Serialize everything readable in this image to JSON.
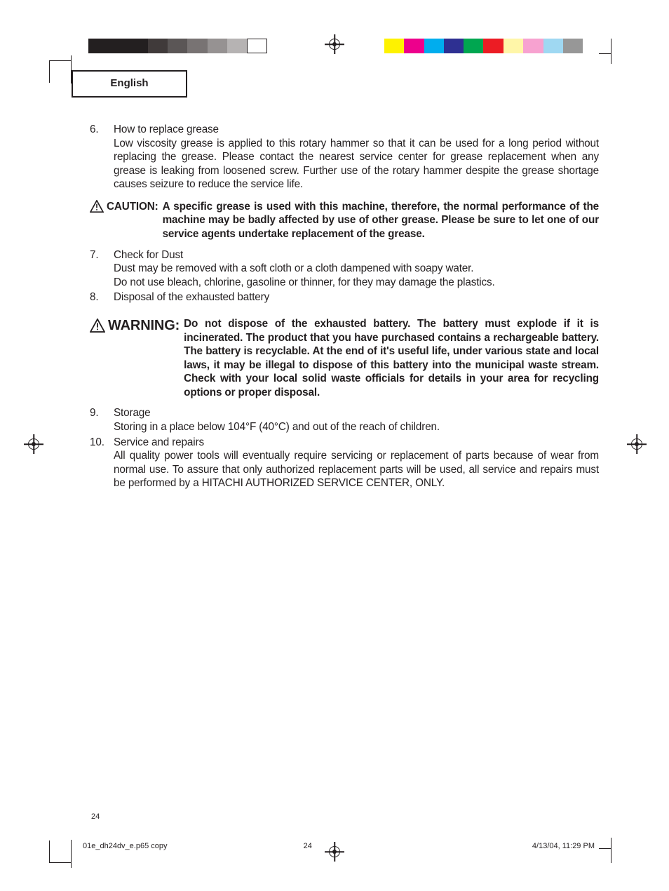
{
  "header": {
    "language": "English"
  },
  "printmarks": {
    "gray_swatches": [
      "#231f20",
      "#231f20",
      "#231f20",
      "#403a3a",
      "#5b5656",
      "#787373",
      "#969292",
      "#b6b3b3",
      "#ffffff"
    ],
    "color_swatches_1": [
      "#fef200",
      "#ed008c",
      "#00adee",
      "#2e3092",
      "#00a650",
      "#ec1c24"
    ],
    "color_swatches_2": [
      "#fff6a8",
      "#f7a2d0",
      "#9fd8f2",
      "#979797"
    ],
    "gray_border": "#231f20"
  },
  "items": {
    "i6": {
      "num": "6.",
      "title": "How to replace grease",
      "body": "Low viscosity grease is applied to this rotary hammer so that it can be used for a long period without replacing the grease. Please contact the nearest service center for grease replacement when any grease is leaking from loosened screw. Further use of the rotary hammer despite the grease shortage causes seizure to reduce the service life."
    },
    "caution": {
      "label": "CAUTION:",
      "body": "A specific grease is used with this machine, therefore, the normal performance of the machine may be badly affected by use of other grease. Please be sure to let one of our service agents undertake replacement of the grease."
    },
    "i7": {
      "num": "7.",
      "title": "Check for Dust",
      "body1": "Dust may be removed with a soft cloth or a cloth dampened with soapy water.",
      "body2": "Do not use bleach, chlorine, gasoline or thinner, for they may damage the plastics."
    },
    "i8": {
      "num": "8.",
      "title": "Disposal of the exhausted battery"
    },
    "warning": {
      "label": "WARNING:",
      "body": "Do not dispose of the exhausted battery. The battery must explode if it is incinerated. The product that you have purchased contains a rechargeable battery. The battery is recyclable. At the end of it's useful life, under various state and local laws, it may be illegal to dispose of this battery into the municipal waste stream. Check with your local solid waste officials for details in your area for recycling options or proper disposal."
    },
    "i9": {
      "num": "9.",
      "title": "Storage",
      "body": "Storing in a place below 104°F (40°C) and out of the reach of children."
    },
    "i10": {
      "num": "10.",
      "title": "Service and repairs",
      "body": "All quality power tools will eventually require servicing or replacement of parts because of wear from normal use. To assure that only authorized replacement parts will be used, all service and repairs must be performed by a HITACHI AUTHORIZED SERVICE CENTER, ONLY."
    }
  },
  "footer": {
    "page_large": "24",
    "file": "01e_dh24dv_e.p65 copy",
    "pg": "24",
    "datetime": "4/13/04, 11:29 PM"
  }
}
